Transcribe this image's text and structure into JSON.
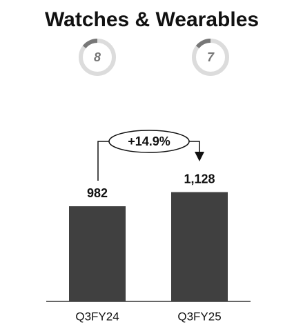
{
  "chart_data": {
    "type": "bar",
    "title": "Watches & Wearables",
    "badges": [
      8,
      7
    ],
    "categories": [
      "Q3FY24",
      "Q3FY25"
    ],
    "values": [
      982,
      1128
    ],
    "value_labels": [
      "982",
      "1,128"
    ],
    "color": "#404040",
    "annotation": "+14.9%"
  }
}
